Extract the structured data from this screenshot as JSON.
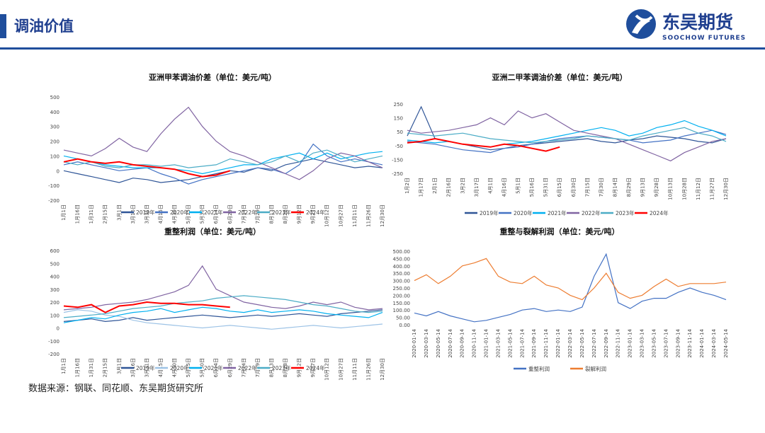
{
  "header": {
    "title": "调油价值",
    "logo_cn": "东吴期货",
    "logo_en": "SOOCHOW FUTURES"
  },
  "source": "数据来源：钢联、同花顺、东吴期货研究所",
  "chart_data": [
    {
      "type": "line",
      "title": "亚洲甲苯调油价差（单位：美元/吨）",
      "categories": [
        "1月1日",
        "1月16日",
        "1月31日",
        "2月15日",
        "3月1日",
        "3月16日",
        "3月31日",
        "4月15日",
        "4月30日",
        "5月15日",
        "5月30日",
        "6月14日",
        "6月29日",
        "7月14日",
        "7月29日",
        "8月13日",
        "8月28日",
        "9月12日",
        "9月27日",
        "10月12日",
        "10月27日",
        "11月11日",
        "11月26日",
        "12月30日"
      ],
      "ylim": [
        -200,
        500
      ],
      "yticks": [
        -200,
        -100,
        0,
        100,
        200,
        300,
        400,
        500
      ],
      "grid": false,
      "series": [
        {
          "name": "2019年",
          "color": "#2f5597",
          "values": [
            0,
            -20,
            -40,
            -60,
            -80,
            -50,
            -60,
            -80,
            -70,
            -60,
            -40,
            -20,
            0,
            -10,
            20,
            0,
            40,
            60,
            80,
            60,
            40,
            20,
            30,
            20
          ]
        },
        {
          "name": "2020年",
          "color": "#4472c4",
          "values": [
            40,
            60,
            40,
            20,
            0,
            10,
            20,
            -20,
            -50,
            -90,
            -60,
            -40,
            -20,
            0,
            20,
            10,
            -20,
            40,
            180,
            100,
            60,
            80,
            60,
            40
          ]
        },
        {
          "name": "2021年",
          "color": "#00b0f0",
          "values": [
            100,
            80,
            60,
            40,
            30,
            20,
            20,
            20,
            10,
            0,
            -20,
            0,
            20,
            40,
            40,
            80,
            100,
            120,
            80,
            120,
            80,
            100,
            120,
            130
          ]
        },
        {
          "name": "2022年",
          "color": "#8064a2",
          "values": [
            140,
            120,
            100,
            150,
            220,
            160,
            130,
            250,
            350,
            430,
            300,
            200,
            130,
            100,
            60,
            20,
            -20,
            -60,
            0,
            80,
            120,
            100,
            60,
            20
          ]
        },
        {
          "name": "2023年",
          "color": "#4bacc6",
          "values": [
            60,
            40,
            60,
            30,
            20,
            40,
            40,
            30,
            40,
            20,
            30,
            40,
            80,
            60,
            40,
            60,
            100,
            60,
            120,
            140,
            100,
            60,
            80,
            100
          ]
        },
        {
          "name": "2024年",
          "color": "#ff0000",
          "values": [
            60,
            80,
            60,
            50,
            60,
            40,
            30,
            20,
            10,
            -20,
            -40,
            -30,
            0,
            null,
            null,
            null,
            null,
            null,
            null,
            null,
            null,
            null,
            null,
            null
          ]
        }
      ]
    },
    {
      "type": "line",
      "title": "亚洲二甲苯调油价差（单位：美元/吨）",
      "categories": [
        "1月2日",
        "1月17日",
        "2月1日",
        "2月16日",
        "3月2日",
        "3月17日",
        "4月1日",
        "4月16日",
        "5月1日",
        "5月16日",
        "5月31日",
        "6月15日",
        "6月30日",
        "7月15日",
        "7月30日",
        "8月14日",
        "8月29日",
        "9月13日",
        "9月28日",
        "10月13日",
        "10月28日",
        "11月12日",
        "11月27日",
        "12月30日"
      ],
      "ylim": [
        -250,
        250
      ],
      "yticks": [
        -250,
        -150,
        -50,
        50,
        150,
        250
      ],
      "grid": false,
      "series": [
        {
          "name": "2019年",
          "color": "#2f5597",
          "values": [
            20,
            230,
            0,
            -20,
            -40,
            -60,
            -80,
            -70,
            -50,
            -40,
            -30,
            -20,
            -10,
            0,
            -20,
            -30,
            -10,
            0,
            20,
            10,
            0,
            -20,
            -30,
            0
          ]
        },
        {
          "name": "2020年",
          "color": "#4472c4",
          "values": [
            -20,
            -30,
            -40,
            -60,
            -80,
            -90,
            -100,
            -70,
            -60,
            -40,
            -20,
            0,
            10,
            20,
            10,
            0,
            -10,
            -30,
            -20,
            -10,
            20,
            40,
            60,
            30
          ]
        },
        {
          "name": "2021年",
          "color": "#00b0f0",
          "values": [
            -10,
            -20,
            -30,
            -20,
            -40,
            -50,
            -60,
            -40,
            -30,
            -20,
            0,
            20,
            40,
            60,
            80,
            60,
            20,
            40,
            80,
            100,
            130,
            90,
            60,
            20
          ]
        },
        {
          "name": "2022年",
          "color": "#8064a2",
          "values": [
            60,
            40,
            50,
            60,
            80,
            100,
            150,
            100,
            200,
            150,
            180,
            120,
            60,
            40,
            20,
            0,
            -40,
            -80,
            -120,
            -160,
            -100,
            -60,
            -20,
            0
          ]
        },
        {
          "name": "2023年",
          "color": "#4bacc6",
          "values": [
            40,
            30,
            20,
            30,
            40,
            20,
            0,
            -10,
            -20,
            -30,
            -20,
            -10,
            0,
            20,
            10,
            0,
            -10,
            20,
            40,
            60,
            80,
            40,
            20,
            -20
          ]
        },
        {
          "name": "2024年",
          "color": "#ff0000",
          "values": [
            -30,
            -20,
            0,
            -20,
            -40,
            -50,
            -60,
            -40,
            -50,
            -70,
            -90,
            -60,
            null,
            null,
            null,
            null,
            null,
            null,
            null,
            null,
            null,
            null,
            null,
            null
          ]
        }
      ]
    },
    {
      "type": "line",
      "title": "重整利润（单位：美元/吨）",
      "categories": [
        "1月1日",
        "1月16日",
        "1月31日",
        "2月15日",
        "3月1日",
        "3月16日",
        "3月31日",
        "4月15日",
        "4月30日",
        "5月15日",
        "5月30日",
        "6月14日",
        "6月29日",
        "7月14日",
        "7月29日",
        "8月13日",
        "8月28日",
        "9月12日",
        "9月27日",
        "10月12日",
        "10月27日",
        "11月11日",
        "11月26日",
        "12月30日"
      ],
      "ylim": [
        -200,
        600
      ],
      "yticks": [
        -200,
        -100,
        0,
        100,
        200,
        300,
        400,
        500,
        600
      ],
      "grid": false,
      "series": [
        {
          "name": "2019年",
          "color": "#2f5597",
          "values": [
            50,
            60,
            70,
            50,
            60,
            80,
            60,
            70,
            80,
            90,
            100,
            90,
            80,
            90,
            100,
            90,
            100,
            110,
            100,
            90,
            110,
            120,
            130,
            140
          ]
        },
        {
          "name": "2020年",
          "color": "#9dc3e6",
          "values": [
            120,
            140,
            130,
            100,
            90,
            60,
            40,
            30,
            20,
            10,
            0,
            10,
            20,
            10,
            0,
            -10,
            0,
            10,
            20,
            10,
            0,
            10,
            20,
            30
          ]
        },
        {
          "name": "2021年",
          "color": "#00b0f0",
          "values": [
            40,
            60,
            80,
            70,
            100,
            120,
            130,
            150,
            120,
            140,
            160,
            150,
            130,
            120,
            140,
            120,
            130,
            140,
            130,
            110,
            100,
            90,
            80,
            120
          ]
        },
        {
          "name": "2022年",
          "color": "#8064a2",
          "values": [
            140,
            150,
            160,
            180,
            190,
            200,
            220,
            250,
            280,
            330,
            480,
            300,
            250,
            200,
            180,
            160,
            150,
            170,
            200,
            180,
            200,
            160,
            140,
            150
          ]
        },
        {
          "name": "2023年",
          "color": "#4bacc6",
          "values": [
            80,
            90,
            100,
            110,
            130,
            150,
            160,
            170,
            190,
            200,
            210,
            230,
            240,
            250,
            240,
            230,
            220,
            200,
            180,
            170,
            150,
            130,
            120,
            130
          ]
        },
        {
          "name": "2024年",
          "color": "#ff0000",
          "values": [
            170,
            160,
            180,
            120,
            170,
            180,
            200,
            190,
            190,
            180,
            180,
            170,
            160,
            null,
            null,
            null,
            null,
            null,
            null,
            null,
            null,
            null,
            null,
            null
          ]
        }
      ]
    },
    {
      "type": "line",
      "title": "重整与裂解利润（单位：美元/吨）",
      "categories": [
        "2020-01-14",
        "2020-03-14",
        "2020-05-14",
        "2020-07-14",
        "2020-09-14",
        "2020-11-14",
        "2021-01-14",
        "2021-03-14",
        "2021-05-14",
        "2021-07-14",
        "2021-09-14",
        "2021-11-14",
        "2022-01-14",
        "2022-03-14",
        "2022-05-14",
        "2022-07-14",
        "2022-09-14",
        "2022-11-14",
        "2023-01-14",
        "2023-03-14",
        "2023-05-14",
        "2023-07-14",
        "2023-09-14",
        "2023-11-14",
        "2024-01-14",
        "2024-03-14",
        "2024-05-14"
      ],
      "ylim": [
        0,
        500
      ],
      "yticks": [
        {
          "value": 0,
          "label": "0.00"
        },
        {
          "value": 50,
          "label": "50.00"
        },
        {
          "value": 100,
          "label": "100.00"
        },
        {
          "value": 150,
          "label": "150.00"
        },
        {
          "value": 200,
          "label": "200.00"
        },
        {
          "value": 250,
          "label": "250.00"
        },
        {
          "value": 300,
          "label": "300.00"
        },
        {
          "value": 350,
          "label": "350.00"
        },
        {
          "value": 400,
          "label": "400.00"
        },
        {
          "value": 450,
          "label": "450.00"
        },
        {
          "value": 500,
          "label": "500.00"
        }
      ],
      "grid": false,
      "series": [
        {
          "name": "重整利润",
          "color": "#4472c4",
          "values": [
            80,
            60,
            90,
            60,
            40,
            20,
            30,
            50,
            70,
            100,
            110,
            90,
            100,
            90,
            120,
            330,
            480,
            150,
            110,
            160,
            180,
            180,
            220,
            250,
            220,
            200,
            170
          ]
        },
        {
          "name": "裂解利润",
          "color": "#ed7d31",
          "values": [
            300,
            340,
            280,
            330,
            400,
            420,
            450,
            330,
            290,
            280,
            330,
            270,
            250,
            200,
            170,
            250,
            350,
            220,
            180,
            200,
            260,
            310,
            260,
            280,
            280,
            280,
            290
          ]
        }
      ]
    }
  ]
}
